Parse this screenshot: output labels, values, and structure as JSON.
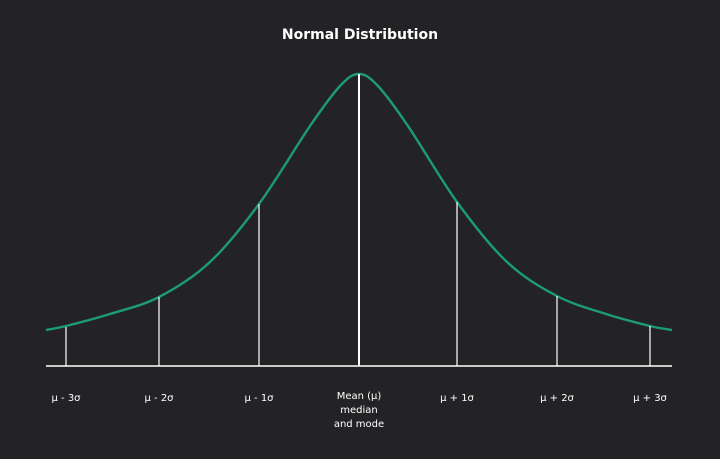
{
  "title": "Normal Distribution",
  "labels": [
    "μ - 3σ",
    "μ - 2σ",
    "μ - 1σ",
    "μ + 1σ",
    "μ + 2σ",
    "μ + 3σ"
  ],
  "center_label": [
    "Mean (μ)",
    "median",
    "and mode"
  ]
}
